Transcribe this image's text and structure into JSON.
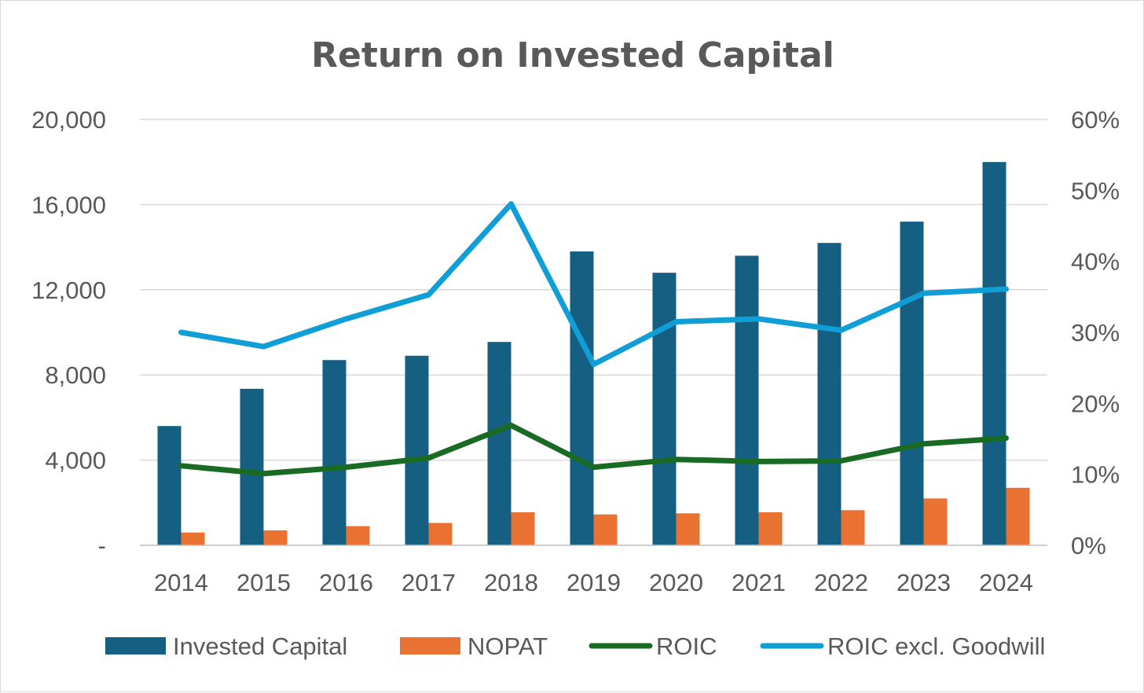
{
  "chart_data": {
    "type": "bar",
    "title": "Return on Invested Capital",
    "categories": [
      "2014",
      "2015",
      "2016",
      "2017",
      "2018",
      "2019",
      "2020",
      "2021",
      "2022",
      "2023",
      "2024"
    ],
    "series": [
      {
        "name": "Invested Capital",
        "kind": "bar",
        "axis": "left",
        "color": "#156082",
        "values": [
          5600,
          7350,
          8700,
          8900,
          9550,
          13800,
          12800,
          13600,
          14200,
          15200,
          18000
        ]
      },
      {
        "name": "NOPAT",
        "kind": "bar",
        "axis": "left",
        "color": "#E97132",
        "values": [
          600,
          700,
          900,
          1050,
          1550,
          1450,
          1500,
          1550,
          1650,
          2200,
          2700
        ]
      },
      {
        "name": "ROIC",
        "kind": "line",
        "axis": "right",
        "color": "#196B24",
        "values": [
          0.112,
          0.101,
          0.11,
          0.123,
          0.169,
          0.11,
          0.121,
          0.118,
          0.119,
          0.143,
          0.151
        ]
      },
      {
        "name": "ROIC excl. Goodwill",
        "kind": "line",
        "axis": "right",
        "color": "#0F9ED5",
        "values": [
          0.3,
          0.28,
          0.319,
          0.353,
          0.481,
          0.255,
          0.315,
          0.319,
          0.303,
          0.355,
          0.361
        ]
      }
    ],
    "y_left": {
      "min": 0,
      "max": 20000,
      "ticks": [
        "-",
        "4,000",
        "8,000",
        "12,000",
        "16,000",
        "20,000"
      ]
    },
    "y_right": {
      "min": 0,
      "max": 0.6,
      "ticks": [
        "0%",
        "10%",
        "20%",
        "30%",
        "40%",
        "50%",
        "60%"
      ]
    },
    "grid": true,
    "legend_position": "bottom"
  }
}
